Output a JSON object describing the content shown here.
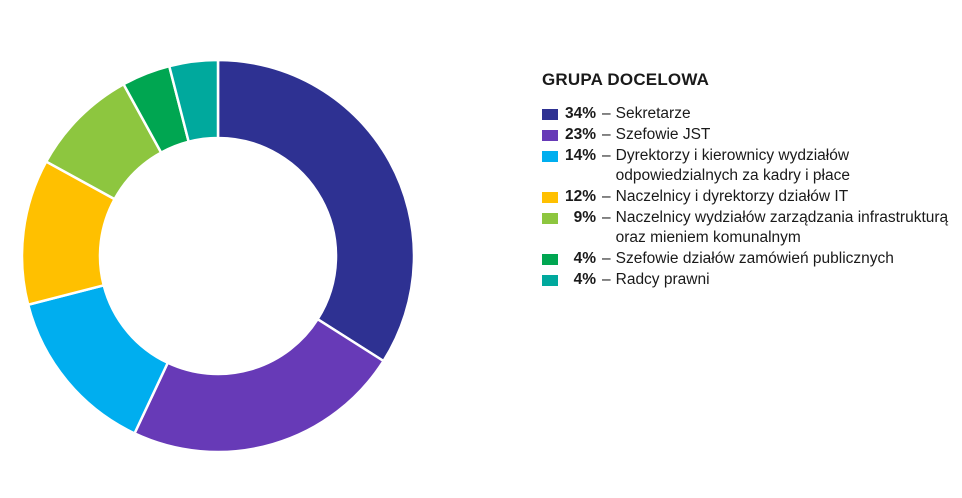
{
  "chart_data": {
    "type": "pie",
    "title": "GRUPA DOCELOWA",
    "unit": "%",
    "slices": [
      {
        "label": "Sekretarze",
        "value": 34,
        "value_label": "34%",
        "color": "#2e3192"
      },
      {
        "label": "Szefowie JST",
        "value": 23,
        "value_label": "23%",
        "color": "#673ab7"
      },
      {
        "label": "Dyrektorzy i kierownicy wydziałów odpowiedzialnych za kadry i płace",
        "value": 14,
        "value_label": "14%",
        "color": "#00aeef"
      },
      {
        "label": "Naczelnicy i dyrektorzy działów IT",
        "value": 12,
        "value_label": "12%",
        "color": "#ffc000"
      },
      {
        "label": "Naczelnicy wydziałów zarządzania infrastrukturą oraz mieniem komunalnym",
        "value": 9,
        "value_label": "9%",
        "color": "#8dc63f"
      },
      {
        "label": "Szefowie działów zamówień publicznych",
        "value": 4,
        "value_label": "4%",
        "color": "#00a651"
      },
      {
        "label": "Radcy prawni",
        "value": 4,
        "value_label": "4%",
        "color": "#00a99d"
      }
    ],
    "legend_position": "right",
    "hole": true
  },
  "legend": {
    "dash": "–"
  }
}
